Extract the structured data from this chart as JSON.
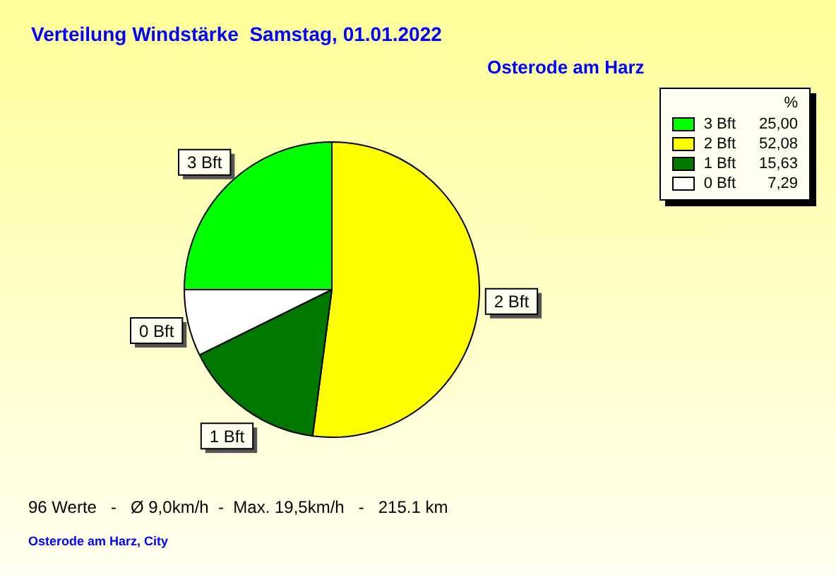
{
  "chart_data": {
    "type": "pie",
    "title": "Verteilung Windstärke  Samstag, 01.01.2022",
    "subtitle": "Osterode am Harz",
    "categories": [
      "3 Bft",
      "2 Bft",
      "1 Bft",
      "0 Bft"
    ],
    "values": [
      25.0,
      52.08,
      15.63,
      7.29
    ],
    "value_labels": [
      "25,00",
      "52,08",
      "15,63",
      "7,29"
    ],
    "colors": [
      "#00ff00",
      "#ffff00",
      "#007800",
      "#ffffff"
    ],
    "legend": "top right",
    "legend_title": "%",
    "annotations": [
      "96 Werte   -   Ø 9,0km/h  -  Max. 19,5km/h   -   215.1 km",
      "Osterode am Harz, City"
    ]
  }
}
